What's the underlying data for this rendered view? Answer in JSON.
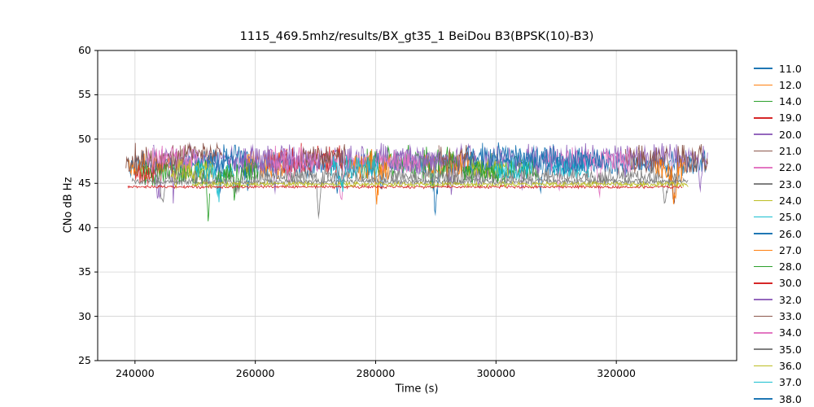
{
  "figure": {
    "background": "#ffffff"
  },
  "chart_data": {
    "type": "line",
    "title": "1115_469.5mhz/results/BX_gt35_1 BeiDou B3(BPSK(10)-B3)",
    "xlabel": "Time (s)",
    "ylabel": "CNo dB Hz",
    "xlim": [
      233800,
      340000
    ],
    "ylim": [
      25,
      60
    ],
    "xticks": [
      240000,
      260000,
      280000,
      300000,
      320000
    ],
    "yticks": [
      25,
      30,
      35,
      40,
      45,
      50,
      55,
      60
    ],
    "grid": true,
    "grid_color": "#d3d3d3",
    "axis_color": "#000000",
    "legend_position": "right-outside",
    "x_step": 120,
    "segment_format": [
      "x_start_s",
      "x_end_s",
      "mean_cno_db_hz",
      "noise_amplitude_db"
    ],
    "series": [
      {
        "name": "11.0",
        "color": "#1f77b4",
        "segments": [
          [
            238800,
            335000,
            47.2,
            1.2
          ]
        ]
      },
      {
        "name": "12.0",
        "color": "#ff7f0e",
        "segments": [
          [
            239000,
            247000,
            46.8,
            1.3
          ],
          [
            258000,
            265500,
            47.3,
            1.5
          ],
          [
            288000,
            295500,
            47.2,
            1.5
          ]
        ]
      },
      {
        "name": "14.0",
        "color": "#2ca02c",
        "segments": [
          [
            241000,
            252500,
            46.2,
            1.3
          ],
          [
            278000,
            293500,
            47.3,
            1.8
          ],
          [
            294500,
            307000,
            46.6,
            1.5
          ]
        ]
      },
      {
        "name": "19.0",
        "color": "#d62728",
        "segments": [
          [
            240000,
            243500,
            46.0,
            1.0
          ],
          [
            262000,
            274500,
            47.6,
            1.6
          ]
        ]
      },
      {
        "name": "20.0",
        "color": "#9467bd",
        "segments": [
          [
            243000,
            335200,
            47.8,
            1.4
          ]
        ]
      },
      {
        "name": "21.0",
        "color": "#8c564b",
        "segments": [
          [
            238500,
            247500,
            47.6,
            1.6
          ],
          [
            290500,
            296500,
            48.0,
            1.2
          ],
          [
            321500,
            335200,
            47.6,
            1.6
          ]
        ]
      },
      {
        "name": "22.0",
        "color": "#e377c2",
        "segments": [
          [
            242000,
            250500,
            47.6,
            1.5
          ],
          [
            271500,
            279000,
            47.4,
            1.3
          ],
          [
            308000,
            322500,
            47.7,
            1.4
          ]
        ]
      },
      {
        "name": "23.0",
        "color": "#7f7f7f",
        "segments": [
          [
            243500,
            331000,
            45.8,
            0.8
          ]
        ]
      },
      {
        "name": "24.0",
        "color": "#bcbd22",
        "segments": [
          [
            246000,
            253000,
            46.6,
            1.1
          ],
          [
            295500,
            302000,
            46.8,
            1.2
          ]
        ]
      },
      {
        "name": "25.0",
        "color": "#17becf",
        "segments": [
          [
            250000,
            256500,
            46.4,
            1.0
          ],
          [
            299500,
            306000,
            46.5,
            1.0
          ]
        ]
      },
      {
        "name": "26.0",
        "color": "#1f77b4",
        "segments": [
          [
            252000,
            259500,
            47.9,
            1.3
          ],
          [
            295000,
            310500,
            48.0,
            1.3
          ]
        ]
      },
      {
        "name": "27.0",
        "color": "#ff7f0e",
        "segments": [
          [
            275500,
            282500,
            47.0,
            1.5
          ],
          [
            326500,
            331500,
            46.6,
            1.2
          ]
        ]
      },
      {
        "name": "28.0",
        "color": "#2ca02c",
        "segments": [
          [
            253500,
            260500,
            46.1,
            1.4
          ],
          [
            294500,
            300500,
            46.6,
            1.3
          ]
        ]
      },
      {
        "name": "30.0",
        "color": "#d62728",
        "segments": [
          [
            238800,
            331000,
            44.6,
            0.15
          ]
        ]
      },
      {
        "name": "32.0",
        "color": "#9467bd",
        "segments": [
          [
            257500,
            266500,
            47.5,
            1.3
          ],
          [
            283000,
            290500,
            47.5,
            1.3
          ]
        ]
      },
      {
        "name": "33.0",
        "color": "#8c564b",
        "segments": [
          [
            247500,
            254500,
            48.4,
            1.1
          ],
          [
            267500,
            275500,
            48.0,
            1.2
          ]
        ]
      },
      {
        "name": "34.0",
        "color": "#e377c2",
        "segments": [
          [
            262500,
            270500,
            47.5,
            1.5
          ],
          [
            280500,
            287500,
            47.4,
            1.2
          ]
        ]
      },
      {
        "name": "35.0",
        "color": "#7f7f7f",
        "segments": [
          [
            239500,
            332000,
            45.2,
            0.3
          ]
        ]
      },
      {
        "name": "36.0",
        "color": "#bcbd22",
        "segments": [
          [
            249500,
            332000,
            44.9,
            0.25
          ]
        ]
      },
      {
        "name": "37.0",
        "color": "#17becf",
        "segments": [
          [
            272500,
            280500,
            46.8,
            1.2
          ],
          [
            309500,
            315500,
            46.6,
            1.0
          ]
        ]
      },
      {
        "name": "38.0",
        "color": "#1f77b4",
        "segments": [
          [
            310000,
            318500,
            47.5,
            1.2
          ]
        ]
      }
    ]
  }
}
